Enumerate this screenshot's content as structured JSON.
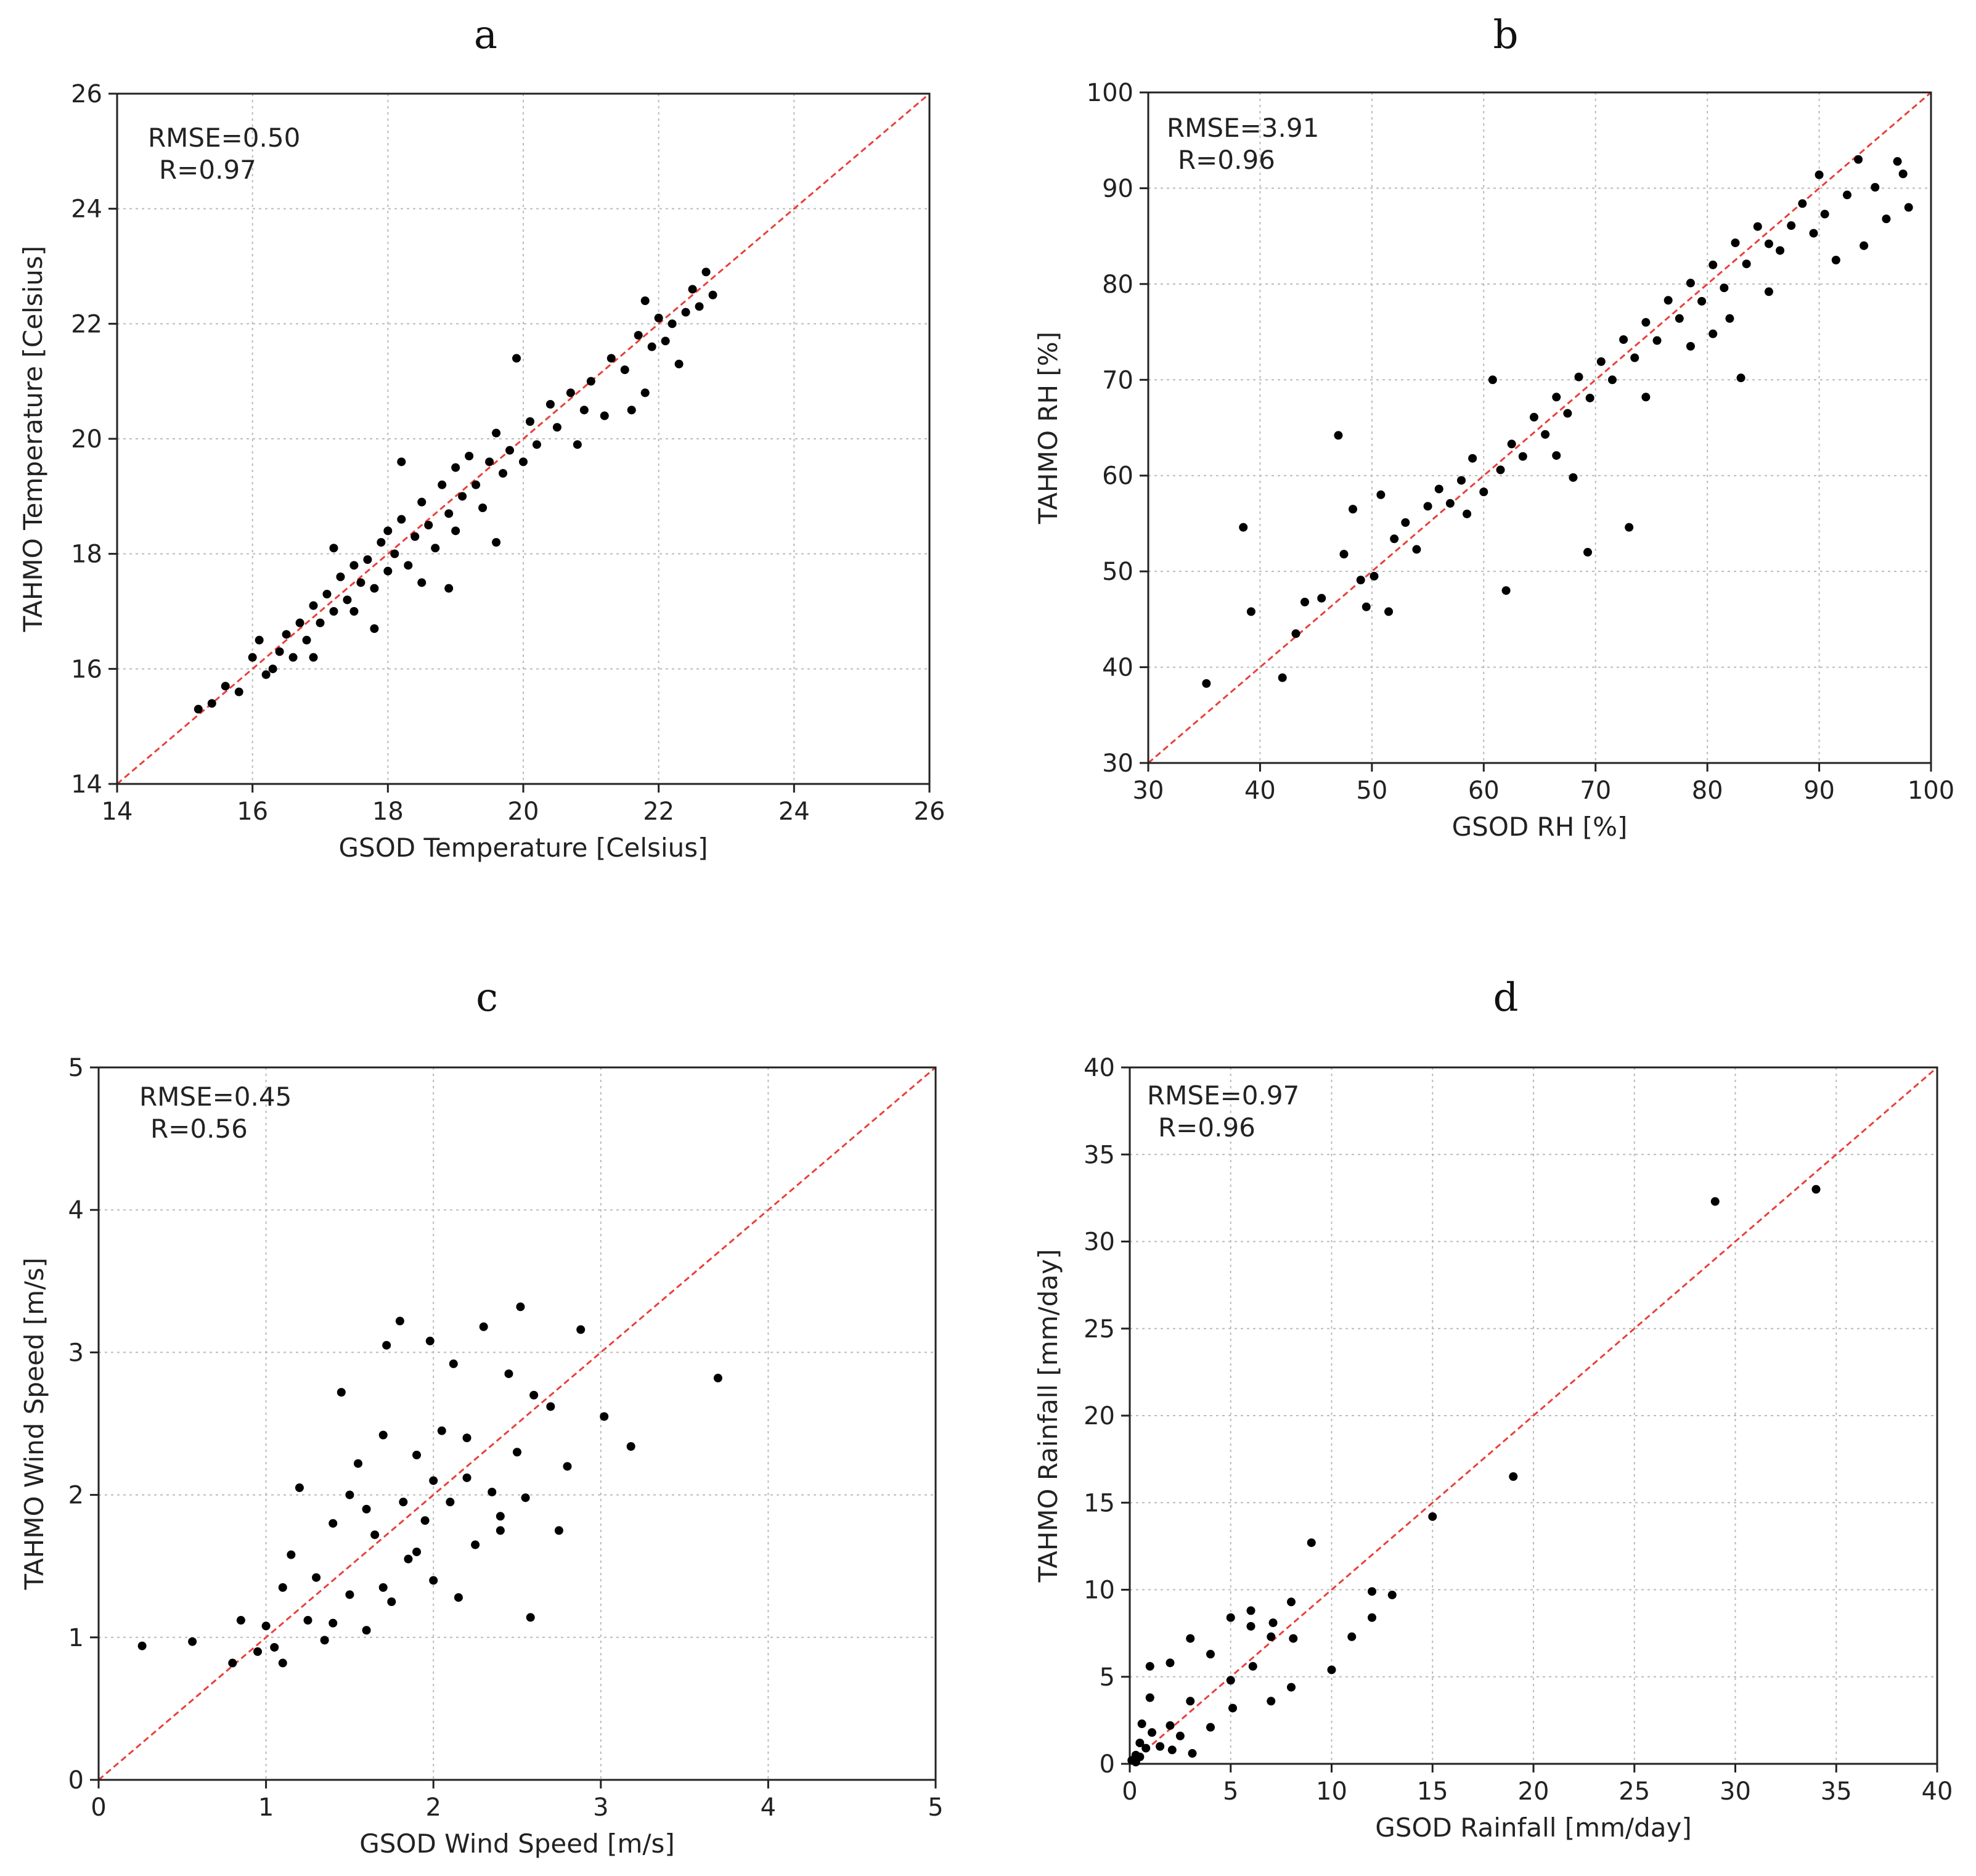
{
  "chart_data": [
    {
      "panel": "a",
      "type": "scatter",
      "title": "",
      "xlabel": "GSOD Temperature [Celsius]",
      "ylabel": "TAHMO Temperature [Celsius]",
      "xlim": [
        14,
        26
      ],
      "ylim": [
        14,
        26
      ],
      "xticks": [
        14,
        16,
        18,
        20,
        22,
        24,
        26
      ],
      "yticks": [
        14,
        16,
        18,
        20,
        22,
        24,
        26
      ],
      "stats": [
        "RMSE=0.50",
        "R=0.97"
      ],
      "identity_line": true,
      "points": [
        [
          15.2,
          15.3
        ],
        [
          15.4,
          15.4
        ],
        [
          15.6,
          15.7
        ],
        [
          15.8,
          15.6
        ],
        [
          16.0,
          16.2
        ],
        [
          16.1,
          16.5
        ],
        [
          16.2,
          15.9
        ],
        [
          16.3,
          16.0
        ],
        [
          16.4,
          16.3
        ],
        [
          16.5,
          16.6
        ],
        [
          16.6,
          16.2
        ],
        [
          16.7,
          16.8
        ],
        [
          16.8,
          16.5
        ],
        [
          16.9,
          17.1
        ],
        [
          17.0,
          16.8
        ],
        [
          17.1,
          17.3
        ],
        [
          17.2,
          17.0
        ],
        [
          17.3,
          17.6
        ],
        [
          17.4,
          17.2
        ],
        [
          17.5,
          17.8
        ],
        [
          17.5,
          17.0
        ],
        [
          17.6,
          17.5
        ],
        [
          17.7,
          17.9
        ],
        [
          17.8,
          17.4
        ],
        [
          17.9,
          18.2
        ],
        [
          18.0,
          17.7
        ],
        [
          18.0,
          18.4
        ],
        [
          18.1,
          18.0
        ],
        [
          18.2,
          18.6
        ],
        [
          18.3,
          17.8
        ],
        [
          18.4,
          18.3
        ],
        [
          18.5,
          18.9
        ],
        [
          18.6,
          18.5
        ],
        [
          18.7,
          18.1
        ],
        [
          18.8,
          19.2
        ],
        [
          18.9,
          18.7
        ],
        [
          19.0,
          19.5
        ],
        [
          19.0,
          18.4
        ],
        [
          19.1,
          19.0
        ],
        [
          19.2,
          19.7
        ],
        [
          19.3,
          19.2
        ],
        [
          19.4,
          18.8
        ],
        [
          19.5,
          19.6
        ],
        [
          19.6,
          20.1
        ],
        [
          19.7,
          19.4
        ],
        [
          19.8,
          19.8
        ],
        [
          19.9,
          21.4
        ],
        [
          20.0,
          19.6
        ],
        [
          20.1,
          20.3
        ],
        [
          20.2,
          19.9
        ],
        [
          20.4,
          20.6
        ],
        [
          20.5,
          20.2
        ],
        [
          20.7,
          20.8
        ],
        [
          20.9,
          20.5
        ],
        [
          21.0,
          21.0
        ],
        [
          21.2,
          20.4
        ],
        [
          21.3,
          21.4
        ],
        [
          21.5,
          21.2
        ],
        [
          21.6,
          20.5
        ],
        [
          21.7,
          21.8
        ],
        [
          21.8,
          22.4
        ],
        [
          21.9,
          21.6
        ],
        [
          22.0,
          22.1
        ],
        [
          22.1,
          21.7
        ],
        [
          22.2,
          22.0
        ],
        [
          22.3,
          21.3
        ],
        [
          22.4,
          22.2
        ],
        [
          22.5,
          22.6
        ],
        [
          22.6,
          22.3
        ],
        [
          22.7,
          22.9
        ],
        [
          22.8,
          22.5
        ],
        [
          19.6,
          18.2
        ],
        [
          18.9,
          17.4
        ],
        [
          17.8,
          16.7
        ],
        [
          16.9,
          16.2
        ],
        [
          20.8,
          19.9
        ],
        [
          21.8,
          20.8
        ],
        [
          17.2,
          18.1
        ],
        [
          18.2,
          19.6
        ],
        [
          18.5,
          17.5
        ]
      ]
    },
    {
      "panel": "b",
      "type": "scatter",
      "title": "",
      "xlabel": "GSOD RH [%]",
      "ylabel": "TAHMO RH [%]",
      "xlim": [
        30,
        100
      ],
      "ylim": [
        30,
        100
      ],
      "xticks": [
        30,
        40,
        50,
        60,
        70,
        80,
        90,
        100
      ],
      "yticks": [
        30,
        40,
        50,
        60,
        70,
        80,
        90,
        100
      ],
      "stats": [
        "RMSE=3.91",
        "R=0.96"
      ],
      "identity_line": true,
      "points": [
        [
          35.2,
          38.3
        ],
        [
          38.5,
          54.6
        ],
        [
          39.2,
          45.8
        ],
        [
          42.0,
          38.9
        ],
        [
          43.2,
          43.5
        ],
        [
          44.0,
          46.8
        ],
        [
          45.5,
          47.2
        ],
        [
          47.0,
          64.2
        ],
        [
          47.5,
          51.8
        ],
        [
          48.3,
          56.5
        ],
        [
          49.0,
          49.1
        ],
        [
          49.5,
          46.3
        ],
        [
          50.2,
          49.5
        ],
        [
          50.8,
          58.0
        ],
        [
          51.5,
          45.8
        ],
        [
          52.0,
          53.4
        ],
        [
          53.0,
          55.1
        ],
        [
          54.0,
          52.3
        ],
        [
          55.0,
          56.8
        ],
        [
          56.0,
          58.6
        ],
        [
          57.0,
          57.1
        ],
        [
          58.0,
          59.5
        ],
        [
          59.0,
          61.8
        ],
        [
          60.0,
          58.3
        ],
        [
          60.8,
          70.0
        ],
        [
          61.5,
          60.6
        ],
        [
          62.0,
          48.0
        ],
        [
          62.5,
          63.3
        ],
        [
          63.5,
          62.0
        ],
        [
          64.5,
          66.1
        ],
        [
          65.5,
          64.3
        ],
        [
          66.5,
          68.2
        ],
        [
          67.5,
          66.5
        ],
        [
          68.0,
          59.8
        ],
        [
          68.5,
          70.3
        ],
        [
          69.3,
          52.0
        ],
        [
          69.5,
          68.1
        ],
        [
          70.5,
          71.9
        ],
        [
          71.5,
          70.0
        ],
        [
          72.5,
          74.2
        ],
        [
          73.0,
          54.6
        ],
        [
          73.5,
          72.3
        ],
        [
          74.5,
          76.0
        ],
        [
          75.5,
          74.1
        ],
        [
          76.5,
          78.3
        ],
        [
          77.5,
          76.4
        ],
        [
          78.5,
          80.1
        ],
        [
          79.5,
          78.2
        ],
        [
          80.5,
          82.0
        ],
        [
          81.5,
          79.6
        ],
        [
          82.5,
          84.3
        ],
        [
          83.0,
          70.2
        ],
        [
          83.5,
          82.1
        ],
        [
          84.5,
          86.0
        ],
        [
          85.5,
          84.2
        ],
        [
          86.5,
          83.5
        ],
        [
          87.5,
          86.1
        ],
        [
          88.5,
          88.4
        ],
        [
          89.5,
          85.3
        ],
        [
          90.0,
          91.4
        ],
        [
          90.5,
          87.3
        ],
        [
          91.5,
          82.5
        ],
        [
          92.5,
          89.3
        ],
        [
          93.5,
          93.0
        ],
        [
          94.0,
          84.0
        ],
        [
          95.0,
          90.1
        ],
        [
          96.0,
          86.8
        ],
        [
          97.0,
          92.8
        ],
        [
          97.5,
          91.5
        ],
        [
          98.0,
          88.0
        ],
        [
          74.5,
          68.2
        ],
        [
          78.5,
          73.5
        ],
        [
          82.0,
          76.4
        ],
        [
          66.5,
          62.1
        ],
        [
          58.5,
          56.0
        ],
        [
          85.5,
          79.2
        ],
        [
          80.5,
          74.8
        ]
      ]
    },
    {
      "panel": "c",
      "type": "scatter",
      "title": "",
      "xlabel": "GSOD Wind Speed [m/s]",
      "ylabel": "TAHMO Wind Speed [m/s]",
      "xlim": [
        0,
        5
      ],
      "ylim": [
        0,
        5
      ],
      "xticks": [
        0,
        1,
        2,
        3,
        4,
        5
      ],
      "yticks": [
        0,
        1,
        2,
        3,
        4,
        5
      ],
      "stats": [
        "RMSE=0.45",
        "R=0.56"
      ],
      "identity_line": true,
      "points": [
        [
          0.26,
          0.94
        ],
        [
          0.56,
          0.97
        ],
        [
          0.8,
          0.82
        ],
        [
          0.85,
          1.12
        ],
        [
          0.95,
          0.9
        ],
        [
          1.0,
          1.08
        ],
        [
          1.05,
          0.93
        ],
        [
          1.1,
          1.35
        ],
        [
          1.1,
          0.82
        ],
        [
          1.15,
          1.58
        ],
        [
          1.2,
          2.05
        ],
        [
          1.25,
          1.12
        ],
        [
          1.3,
          1.42
        ],
        [
          1.35,
          0.98
        ],
        [
          1.4,
          1.8
        ],
        [
          1.45,
          2.72
        ],
        [
          1.5,
          1.3
        ],
        [
          1.55,
          2.22
        ],
        [
          1.6,
          1.05
        ],
        [
          1.65,
          1.72
        ],
        [
          1.7,
          2.42
        ],
        [
          1.72,
          3.05
        ],
        [
          1.75,
          1.25
        ],
        [
          1.8,
          3.22
        ],
        [
          1.82,
          1.95
        ],
        [
          1.85,
          1.55
        ],
        [
          1.9,
          2.28
        ],
        [
          1.95,
          1.82
        ],
        [
          1.98,
          3.08
        ],
        [
          2.0,
          1.4
        ],
        [
          2.05,
          2.45
        ],
        [
          2.1,
          1.95
        ],
        [
          2.12,
          2.92
        ],
        [
          2.15,
          1.28
        ],
        [
          2.2,
          2.12
        ],
        [
          2.25,
          1.65
        ],
        [
          2.3,
          3.18
        ],
        [
          2.35,
          2.02
        ],
        [
          2.4,
          1.75
        ],
        [
          2.45,
          2.85
        ],
        [
          2.5,
          2.3
        ],
        [
          2.52,
          3.32
        ],
        [
          2.55,
          1.98
        ],
        [
          2.58,
          1.14
        ],
        [
          2.6,
          2.7
        ],
        [
          2.7,
          2.62
        ],
        [
          2.75,
          1.75
        ],
        [
          2.8,
          2.2
        ],
        [
          2.88,
          3.16
        ],
        [
          3.02,
          2.55
        ],
        [
          3.18,
          2.34
        ],
        [
          3.7,
          2.82
        ],
        [
          1.4,
          1.1
        ],
        [
          1.6,
          1.9
        ],
        [
          1.9,
          1.6
        ],
        [
          2.0,
          2.1
        ],
        [
          2.2,
          2.4
        ],
        [
          1.7,
          1.35
        ],
        [
          1.5,
          2.0
        ],
        [
          2.4,
          1.85
        ]
      ]
    },
    {
      "panel": "d",
      "type": "scatter",
      "title": "",
      "xlabel": "GSOD Rainfall [mm/day]",
      "ylabel": "TAHMO Rainfall [mm/day]",
      "xlim": [
        0,
        40
      ],
      "ylim": [
        0,
        40
      ],
      "xticks": [
        0,
        5,
        10,
        15,
        20,
        25,
        30,
        35,
        40
      ],
      "yticks": [
        0,
        5,
        10,
        15,
        20,
        25,
        30,
        35,
        40
      ],
      "stats": [
        "RMSE=0.97",
        "R=0.96"
      ],
      "identity_line": true,
      "points": [
        [
          0.1,
          0.2
        ],
        [
          0.3,
          0.5
        ],
        [
          0.5,
          1.2
        ],
        [
          0.6,
          2.3
        ],
        [
          0.8,
          0.9
        ],
        [
          1.0,
          3.8
        ],
        [
          1.0,
          5.6
        ],
        [
          1.1,
          1.8
        ],
        [
          2.0,
          2.2
        ],
        [
          2.0,
          5.8
        ],
        [
          2.1,
          0.8
        ],
        [
          3.0,
          3.6
        ],
        [
          3.0,
          7.2
        ],
        [
          3.1,
          0.6
        ],
        [
          4.0,
          2.1
        ],
        [
          4.0,
          6.3
        ],
        [
          5.0,
          4.8
        ],
        [
          5.0,
          8.4
        ],
        [
          5.1,
          3.2
        ],
        [
          6.0,
          7.9
        ],
        [
          6.0,
          8.8
        ],
        [
          6.1,
          5.6
        ],
        [
          7.0,
          3.6
        ],
        [
          7.0,
          7.3
        ],
        [
          7.1,
          8.1
        ],
        [
          8.0,
          4.4
        ],
        [
          8.0,
          9.3
        ],
        [
          8.1,
          7.2
        ],
        [
          9.0,
          12.7
        ],
        [
          10.0,
          5.4
        ],
        [
          11.0,
          7.3
        ],
        [
          12.0,
          8.4
        ],
        [
          12.0,
          9.9
        ],
        [
          13.0,
          9.7
        ],
        [
          15.0,
          14.2
        ],
        [
          19.0,
          16.5
        ],
        [
          29.0,
          32.3
        ],
        [
          34.0,
          33.0
        ],
        [
          0.3,
          0.1
        ],
        [
          0.5,
          0.4
        ],
        [
          1.5,
          1.0
        ],
        [
          2.5,
          1.6
        ]
      ]
    }
  ]
}
